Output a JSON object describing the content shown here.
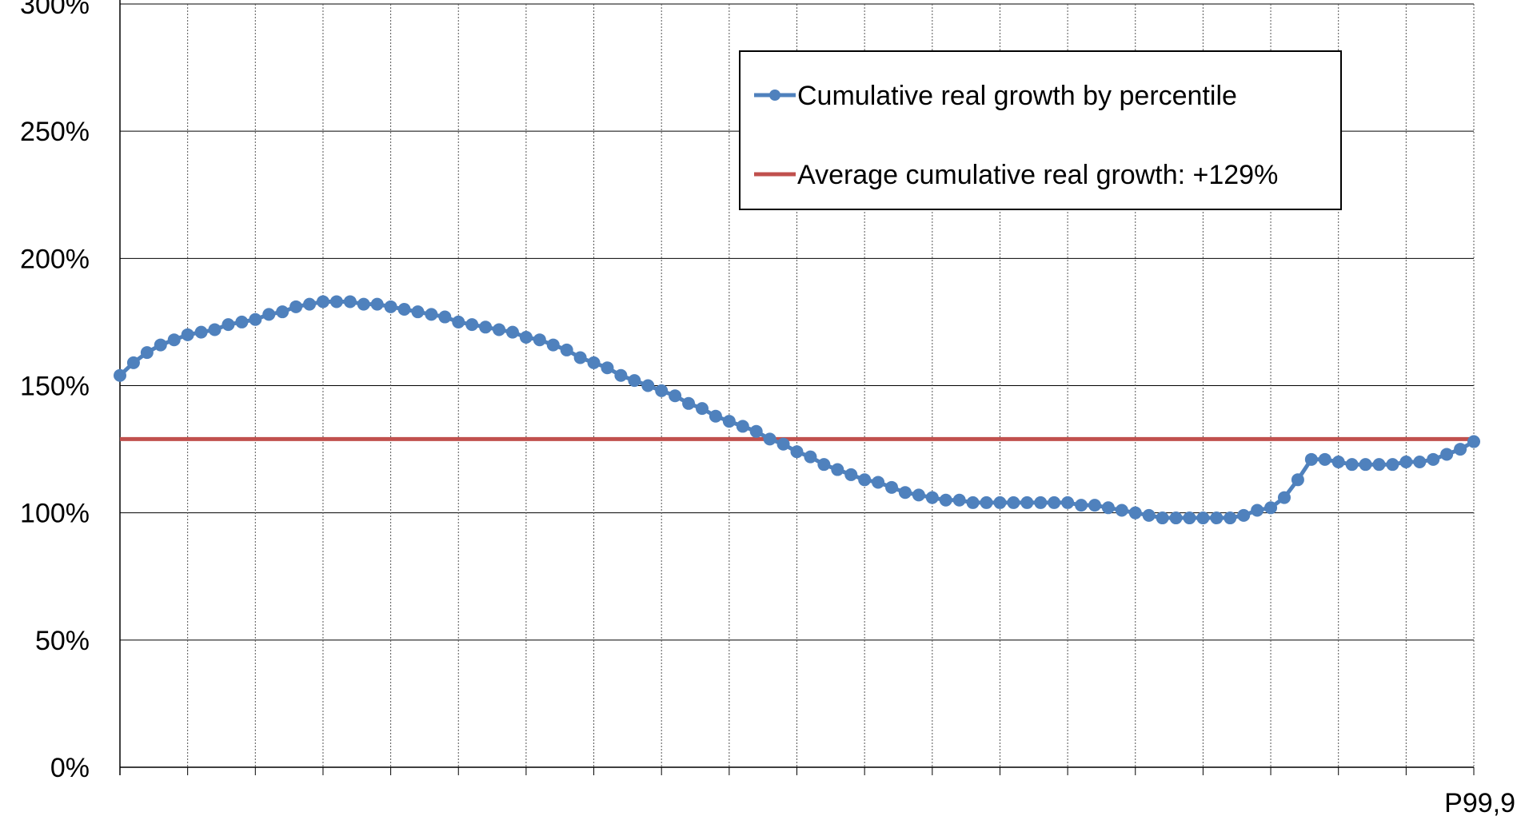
{
  "chart_data": {
    "type": "line",
    "title": "",
    "xlabel": "",
    "ylabel": "",
    "ylim": [
      0,
      3
    ],
    "y_tick_labels": [
      "0%",
      "50%",
      "100%",
      "150%",
      "200%",
      "250%",
      "300%"
    ],
    "x_tick_labels": [
      "P99,9"
    ],
    "grid": true,
    "legend_position": "top-right",
    "series": [
      {
        "name": "Cumulative real growth by percentile",
        "color": "#4F81BD",
        "marker": "circle",
        "values": [
          1.54,
          1.59,
          1.63,
          1.66,
          1.68,
          1.7,
          1.71,
          1.72,
          1.74,
          1.75,
          1.76,
          1.78,
          1.79,
          1.81,
          1.82,
          1.83,
          1.83,
          1.83,
          1.82,
          1.82,
          1.81,
          1.8,
          1.79,
          1.78,
          1.77,
          1.75,
          1.74,
          1.73,
          1.72,
          1.71,
          1.69,
          1.68,
          1.66,
          1.64,
          1.61,
          1.59,
          1.57,
          1.54,
          1.52,
          1.5,
          1.48,
          1.46,
          1.43,
          1.41,
          1.38,
          1.36,
          1.34,
          1.32,
          1.29,
          1.27,
          1.24,
          1.22,
          1.19,
          1.17,
          1.15,
          1.13,
          1.12,
          1.1,
          1.08,
          1.07,
          1.06,
          1.05,
          1.05,
          1.04,
          1.04,
          1.04,
          1.04,
          1.04,
          1.04,
          1.04,
          1.04,
          1.03,
          1.03,
          1.02,
          1.01,
          1.0,
          0.99,
          0.98,
          0.98,
          0.98,
          0.98,
          0.98,
          0.98,
          0.99,
          1.01,
          1.02,
          1.06,
          1.13,
          1.21,
          1.21,
          1.2,
          1.19,
          1.19,
          1.19,
          1.19,
          1.2,
          1.2,
          1.21,
          1.23,
          1.25,
          1.28
        ]
      },
      {
        "name": "Average cumulative real growth: +129%",
        "color": "#C0504D",
        "marker": "none",
        "constant": 1.29
      }
    ]
  }
}
